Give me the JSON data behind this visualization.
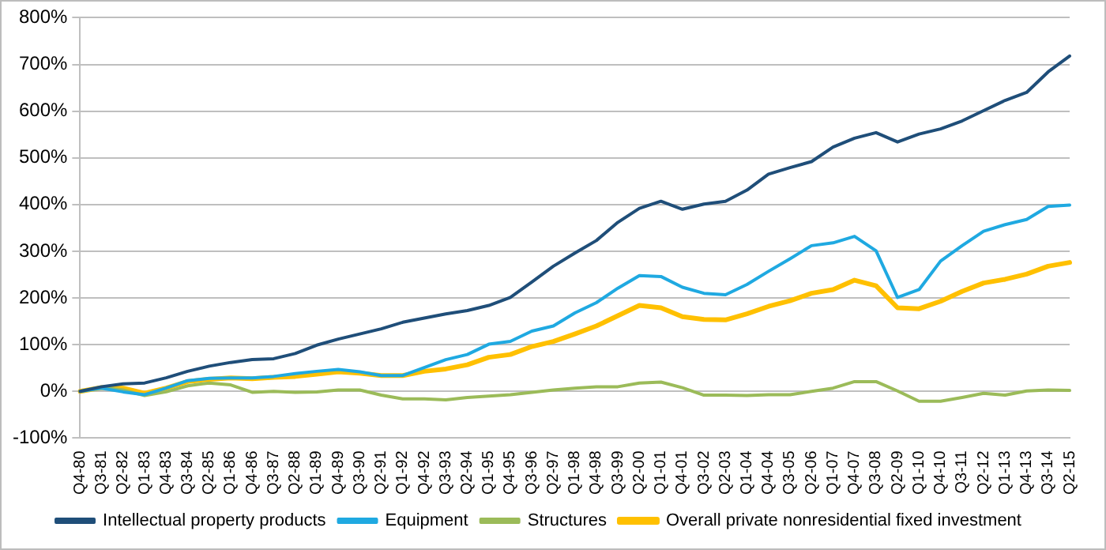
{
  "chart_data": {
    "type": "line",
    "categories": [
      "Q4-80",
      "Q3-81",
      "Q2-82",
      "Q1-83",
      "Q4-83",
      "Q3-84",
      "Q2-85",
      "Q1-86",
      "Q4-86",
      "Q3-87",
      "Q2-88",
      "Q1-89",
      "Q4-89",
      "Q3-90",
      "Q2-91",
      "Q1-92",
      "Q4-92",
      "Q3-93",
      "Q2-94",
      "Q1-95",
      "Q4-95",
      "Q3-96",
      "Q2-97",
      "Q1-98",
      "Q4-98",
      "Q3-99",
      "Q2-00",
      "Q1-01",
      "Q4-01",
      "Q3-02",
      "Q2-03",
      "Q1-04",
      "Q4-04",
      "Q3-05",
      "Q2-06",
      "Q1-07",
      "Q4-07",
      "Q3-08",
      "Q2-09",
      "Q1-10",
      "Q4-10",
      "Q3-11",
      "Q2-12",
      "Q1-13",
      "Q4-13",
      "Q3-14",
      "Q2-15"
    ],
    "series": [
      {
        "name": "Intellectual property products",
        "color": "#1f4e79",
        "values": [
          0,
          10,
          16,
          18,
          29,
          43,
          54,
          62,
          68,
          70,
          81,
          99,
          112,
          123,
          134,
          148,
          157,
          166,
          173,
          184,
          201,
          234,
          268,
          296,
          323,
          362,
          392,
          407,
          390,
          401,
          407,
          431,
          465,
          479,
          492,
          523,
          542,
          554,
          534,
          551,
          562,
          579,
          601,
          623,
          640,
          684,
          718
        ]
      },
      {
        "name": "Equipment",
        "color": "#1fa9e1",
        "values": [
          0,
          7,
          -1,
          -7,
          7,
          23,
          28,
          29,
          29,
          32,
          38,
          43,
          47,
          42,
          34,
          34,
          51,
          68,
          79,
          101,
          107,
          129,
          140,
          168,
          190,
          221,
          248,
          246,
          223,
          210,
          207,
          229,
          257,
          284,
          312,
          318,
          332,
          301,
          201,
          218,
          279,
          312,
          343,
          357,
          368,
          396,
          399
        ]
      },
      {
        "name": "Structures",
        "color": "#9bbb59",
        "values": [
          0,
          9,
          3,
          -9,
          -1,
          12,
          18,
          14,
          -2,
          0,
          -2,
          -1,
          3,
          3,
          -8,
          -16,
          -16,
          -18,
          -13,
          -10,
          -7,
          -2,
          3,
          7,
          10,
          10,
          18,
          20,
          8,
          -8,
          -8,
          -9,
          -7,
          -7,
          0,
          7,
          21,
          21,
          1,
          -21,
          -21,
          -13,
          -4,
          -8,
          1,
          3,
          2
        ]
      },
      {
        "name": "Overall private nonresidential fixed investment",
        "color": "#ffc000",
        "values": [
          0,
          8,
          7,
          -4,
          7,
          21,
          26,
          29,
          27,
          30,
          32,
          37,
          42,
          39,
          34,
          34,
          43,
          48,
          57,
          73,
          79,
          96,
          107,
          123,
          140,
          162,
          184,
          179,
          160,
          154,
          153,
          166,
          182,
          194,
          210,
          218,
          238,
          226,
          179,
          177,
          193,
          214,
          232,
          240,
          251,
          268,
          276
        ]
      }
    ],
    "ylim": [
      -100,
      800
    ],
    "yticks": [
      {
        "value": -100,
        "label": "-100%"
      },
      {
        "value": 0,
        "label": "0%"
      },
      {
        "value": 100,
        "label": "100%"
      },
      {
        "value": 200,
        "label": "200%"
      },
      {
        "value": 300,
        "label": "300%"
      },
      {
        "value": 400,
        "label": "400%"
      },
      {
        "value": 500,
        "label": "500%"
      },
      {
        "value": 600,
        "label": "600%"
      },
      {
        "value": 700,
        "label": "700%"
      },
      {
        "value": 800,
        "label": "800%"
      }
    ],
    "grid": "y",
    "legend": "bottom",
    "marker": "none",
    "line_style": "solid"
  }
}
